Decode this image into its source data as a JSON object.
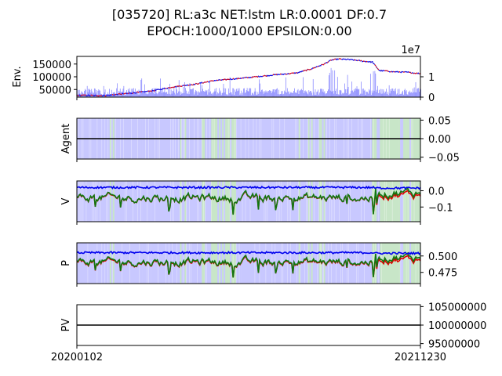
{
  "title": {
    "line1": "[035720] RL:a3c NET:lstm LR:0.0001 DF:0.7",
    "line2": "EPOCH:1000/1000 EPSILON:0.00"
  },
  "x_axis": {
    "start_label": "20200102",
    "end_label": "20211230"
  },
  "colors": {
    "price": "#3b1fa8",
    "buy": "#ff0000",
    "sell": "#0000ff",
    "volume": "#8c8cff",
    "buy_fill": "#c8e6c8",
    "hold_fill": "#c8c8ff",
    "v_blue": "#0000ee",
    "v_red": "#e00000",
    "v_green": "#117711",
    "flat": "#000000"
  },
  "chart_data": [
    {
      "type": "line",
      "name": "env",
      "ylabel": "Env.",
      "left_ticks": [
        150000,
        100000,
        50000
      ],
      "left_tick_labels": [
        "150000",
        "100000",
        "50000"
      ],
      "right_ticks": [
        1,
        0
      ],
      "right_tick_labels": [
        "1",
        "0"
      ],
      "right_scale_label": "1e7",
      "ylim": [
        20000,
        180000
      ],
      "volume_ylim": [
        0,
        20000000
      ],
      "price_keypoints": [
        [
          0,
          27000
        ],
        [
          0.08,
          26000
        ],
        [
          0.16,
          36000
        ],
        [
          0.22,
          45000
        ],
        [
          0.28,
          60000
        ],
        [
          0.34,
          70000
        ],
        [
          0.4,
          85000
        ],
        [
          0.46,
          92000
        ],
        [
          0.52,
          100000
        ],
        [
          0.58,
          108000
        ],
        [
          0.64,
          115000
        ],
        [
          0.68,
          130000
        ],
        [
          0.72,
          150000
        ],
        [
          0.74,
          165000
        ],
        [
          0.76,
          170000
        ],
        [
          0.8,
          167000
        ],
        [
          0.84,
          160000
        ],
        [
          0.86,
          158000
        ],
        [
          0.88,
          125000
        ],
        [
          0.92,
          120000
        ],
        [
          0.96,
          118000
        ],
        [
          1.0,
          112000
        ]
      ]
    },
    {
      "type": "area",
      "name": "agent",
      "ylabel": "Agent",
      "right_ticks": [
        0.05,
        0.0,
        -0.05
      ],
      "right_tick_labels": [
        "0.05",
        "0.00",
        "−0.05"
      ],
      "ylim": [
        -0.055,
        0.055
      ],
      "flat_value": 0.0
    },
    {
      "type": "line",
      "name": "value",
      "ylabel": "V",
      "right_ticks": [
        0.0,
        -0.1
      ],
      "right_tick_labels": [
        "0.0",
        "−0.1"
      ],
      "ylim": [
        -0.19,
        0.06
      ]
    },
    {
      "type": "line",
      "name": "policy",
      "ylabel": "P",
      "right_ticks": [
        0.5,
        0.475
      ],
      "right_tick_labels": [
        "0.500",
        "0.475"
      ],
      "ylim": [
        0.458,
        0.52
      ]
    },
    {
      "type": "line",
      "name": "portfolio_value",
      "ylabel": "PV",
      "right_ticks": [
        105000000,
        100000000,
        95000000
      ],
      "right_tick_labels": [
        "105000000",
        "100000000",
        "95000000"
      ],
      "ylim": [
        94500000,
        105500000
      ],
      "flat_value": 100000000
    }
  ]
}
